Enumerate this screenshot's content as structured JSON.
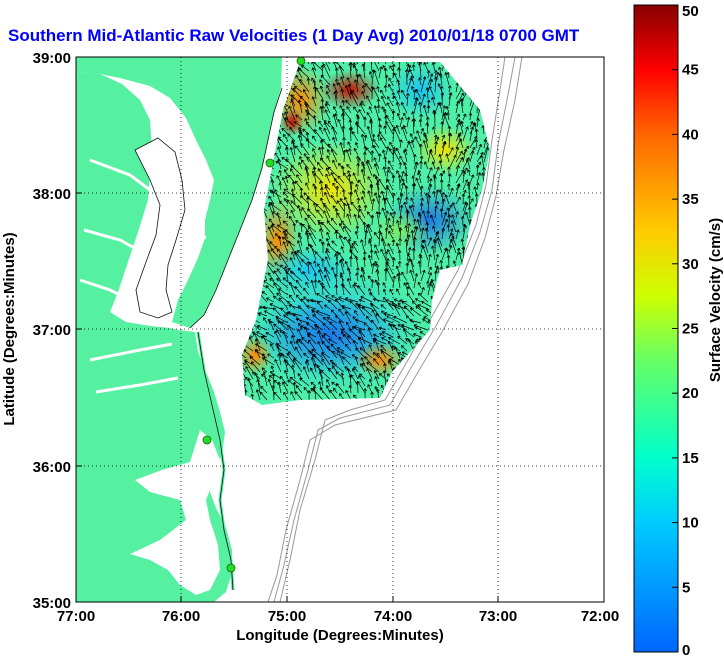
{
  "title": "Southern Mid-Atlantic Raw Velocities (1 Day Avg) 2010/01/18 0700 GMT",
  "map": {
    "x_axis_label": "Longitude (Degrees:Minutes)",
    "y_axis_label": "Latitude (Degrees:Minutes)",
    "x_ticks": [
      "77:00",
      "76:00",
      "75:00",
      "74:00",
      "73:00",
      "72:00"
    ],
    "y_ticks": [
      "39:00",
      "38:00",
      "37:00",
      "36:00",
      "35:00"
    ],
    "grid": "dotted",
    "land_color": "#55f0a0",
    "water_color": "#ffffff",
    "station_color": "#22dd22"
  },
  "colorbar": {
    "label": "Surface Velocity (cm/s)",
    "ticks": [
      "0",
      "5",
      "10",
      "15",
      "20",
      "25",
      "30",
      "35",
      "40",
      "45",
      "50"
    ],
    "min": 0,
    "max": 50,
    "colormap": "jet"
  }
}
